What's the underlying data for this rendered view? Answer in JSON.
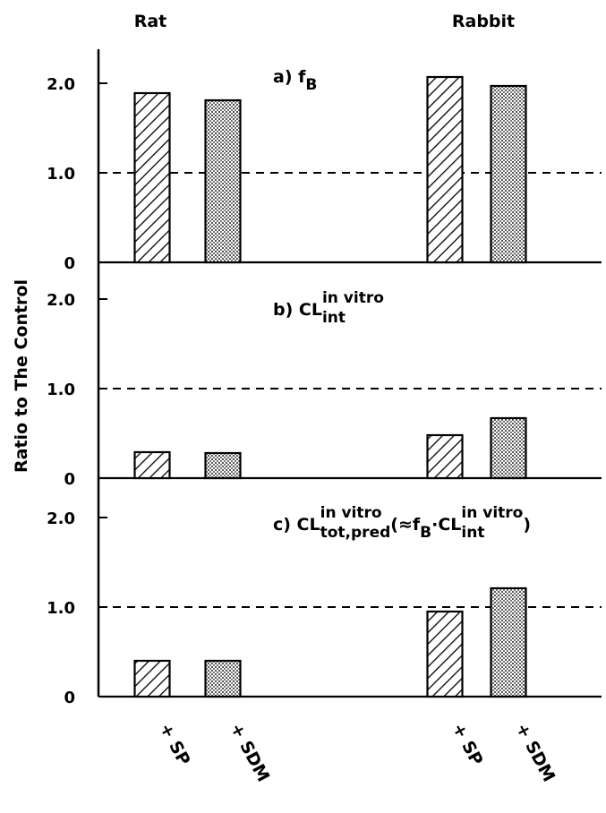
{
  "groups": [
    "Rat",
    "Rabbit"
  ],
  "y_label": "Ratio to The Control",
  "chart_data": [
    {
      "type": "bar",
      "title_parts": [
        {
          "text": "a) f",
          "style": "normal"
        },
        {
          "text": "B",
          "style": "sub"
        }
      ],
      "values": [
        1.89,
        1.81,
        2.07,
        1.97
      ],
      "patterns": [
        "hatch",
        "dots",
        "hatch",
        "dots"
      ],
      "ylim": [
        0,
        2.4
      ],
      "yticks": [
        0,
        {
          "value": 1,
          "label": "1.0"
        },
        {
          "value": 2,
          "label": "2.0"
        }
      ],
      "reference_line": 1
    },
    {
      "type": "bar",
      "title_parts": [
        {
          "text": "b) CL",
          "style": "normal"
        },
        {
          "text": "in vitro",
          "style": "sup"
        },
        {
          "text": "int",
          "style": "sub"
        }
      ],
      "values": [
        0.29,
        0.28,
        0.48,
        0.67
      ],
      "patterns": [
        "hatch",
        "dots",
        "hatch",
        "dots"
      ],
      "ylim": [
        0,
        2.4
      ],
      "yticks": [
        0,
        {
          "value": 1,
          "label": "1.0"
        },
        {
          "value": 2,
          "label": "2.0"
        }
      ],
      "reference_line": 1
    },
    {
      "type": "bar",
      "title_parts": [
        {
          "text": "c) CL",
          "style": "normal"
        },
        {
          "text": "in vitro",
          "style": "sup"
        },
        {
          "text": "tot,pred",
          "style": "sub"
        },
        {
          "text": "(≈f",
          "style": "normal"
        },
        {
          "text": "B",
          "style": "sub"
        },
        {
          "text": "·CL",
          "style": "normal"
        },
        {
          "text": "in vitro",
          "style": "sup"
        },
        {
          "text": "int",
          "style": "sub"
        },
        {
          "text": ")",
          "style": "normal"
        }
      ],
      "categories": [
        "+ SP",
        "+ SDM",
        "+ SP",
        "+ SDM"
      ],
      "values": [
        0.4,
        0.4,
        0.95,
        1.21
      ],
      "patterns": [
        "hatch",
        "dots",
        "hatch",
        "dots"
      ],
      "ylim": [
        0,
        2.4
      ],
      "yticks": [
        0,
        {
          "value": 1,
          "label": "1.0"
        },
        {
          "value": 2,
          "label": "2.0"
        }
      ],
      "reference_line": 1
    }
  ]
}
